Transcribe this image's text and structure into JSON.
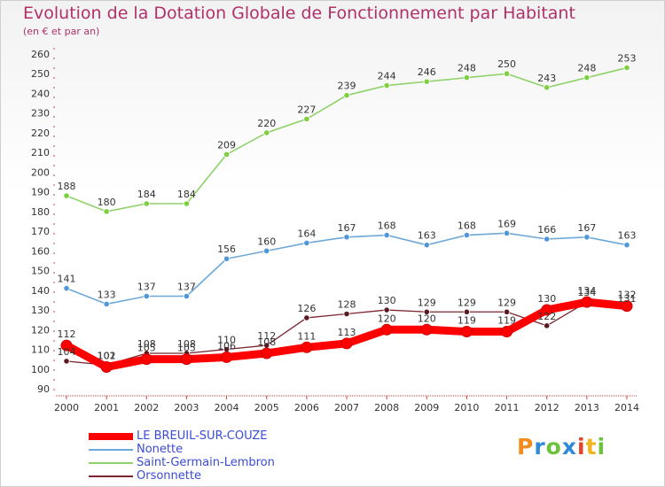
{
  "title": "Evolution de la Dotation Globale de Fonctionnement par Habitant",
  "subtitle": "(en € et par an)",
  "chart_data": {
    "type": "line",
    "x": [
      "2000",
      "2001",
      "2002",
      "2003",
      "2004",
      "2005",
      "2006",
      "2007",
      "2008",
      "2009",
      "2010",
      "2011",
      "2012",
      "2013",
      "2014"
    ],
    "ylim": [
      90,
      260
    ],
    "yticks": [
      90,
      100,
      110,
      120,
      130,
      140,
      150,
      160,
      170,
      180,
      190,
      200,
      210,
      220,
      230,
      240,
      250,
      260
    ],
    "grid": false,
    "legend_position": "bottom-left",
    "series": [
      {
        "name": "Saint-Germain-Lembron",
        "color": "#8fd16a",
        "point_color": "#7ccf3d",
        "values": [
          188,
          180,
          184,
          184,
          209,
          220,
          227,
          239,
          244,
          246,
          248,
          250,
          243,
          248,
          253
        ],
        "labels": [
          "188",
          "180",
          "184",
          "184",
          "209",
          "220",
          "227",
          "239",
          "244",
          "246",
          "248",
          "250",
          "243",
          "248",
          "253"
        ]
      },
      {
        "name": "Nonette",
        "color": "#6ea8d8",
        "point_color": "#4f97d6",
        "values": [
          141,
          133,
          137,
          137,
          156,
          160,
          164,
          167,
          168,
          163,
          168,
          169,
          166,
          167,
          163
        ],
        "labels": [
          "141",
          "133",
          "137",
          "137",
          "156",
          "160",
          "164",
          "167",
          "168",
          "163",
          "168",
          "169",
          "166",
          "167",
          "163"
        ]
      },
      {
        "name": "Orsonnette",
        "color": "#7a2530",
        "point_color": "#5a1a22",
        "values": [
          104,
          102,
          108,
          108,
          110,
          112,
          126,
          128,
          130,
          129,
          129,
          129,
          122,
          134,
          131
        ],
        "labels": [
          "104",
          "102",
          "108",
          "108",
          "110",
          "112",
          "126",
          "128",
          "130",
          "129",
          "129",
          "129",
          "122",
          "134",
          "131"
        ]
      },
      {
        "name": "LE BREUIL-SUR-COUZE",
        "color": "#ff0000",
        "point_color": "#ff0000",
        "values": [
          112,
          101,
          105,
          105,
          106,
          108,
          111,
          113,
          120,
          120,
          119,
          119,
          130,
          134,
          132
        ],
        "labels": [
          "112",
          "101",
          "105",
          "105",
          "106",
          "108",
          "111",
          "113",
          "120",
          "120",
          "119",
          "119",
          "130",
          "134",
          "132"
        ]
      }
    ]
  },
  "legend": [
    {
      "label": "LE BREUIL-SUR-COUZE",
      "color": "#ff0000"
    },
    {
      "label": "Nonette",
      "color": "#6ea8d8"
    },
    {
      "label": "Saint-Germain-Lembron",
      "color": "#8fd16a"
    },
    {
      "label": "Orsonnette",
      "color": "#7a2530"
    }
  ],
  "logo": {
    "text": "Proxiti",
    "letters": [
      "P",
      "r",
      "o",
      "x",
      "i",
      "t",
      "i"
    ],
    "colors": [
      "#f28c1e",
      "#2e8ad8",
      "#6cc23a",
      "#2e8ad8",
      "#e8412a",
      "#f2b51e",
      "#6cc23a"
    ]
  }
}
